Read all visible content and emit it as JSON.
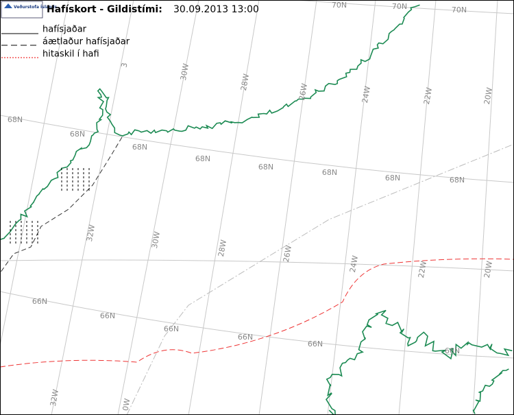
{
  "header": {
    "logo": "Veðurstofa Íslands",
    "title": "Hafískort - Gildistími:",
    "datetime": "30.09.2013 13:00"
  },
  "legend": [
    "hafísjaðar",
    "áætlaður hafísjaðar",
    "hitaskil í hafi"
  ],
  "labels": [
    "70N",
    "70N",
    "70N",
    "68N",
    "68N",
    "68N",
    "68N",
    "68N",
    "68N",
    "68N",
    "68N",
    "66N",
    "66N",
    "66N",
    "66N",
    "66N",
    "66N",
    "3",
    "30W",
    "28W",
    "26W",
    "24W",
    "22W",
    "20W",
    "32W",
    "30W",
    "28W",
    "26W",
    "24W",
    "22W",
    "20W",
    "32W",
    "0W"
  ]
}
